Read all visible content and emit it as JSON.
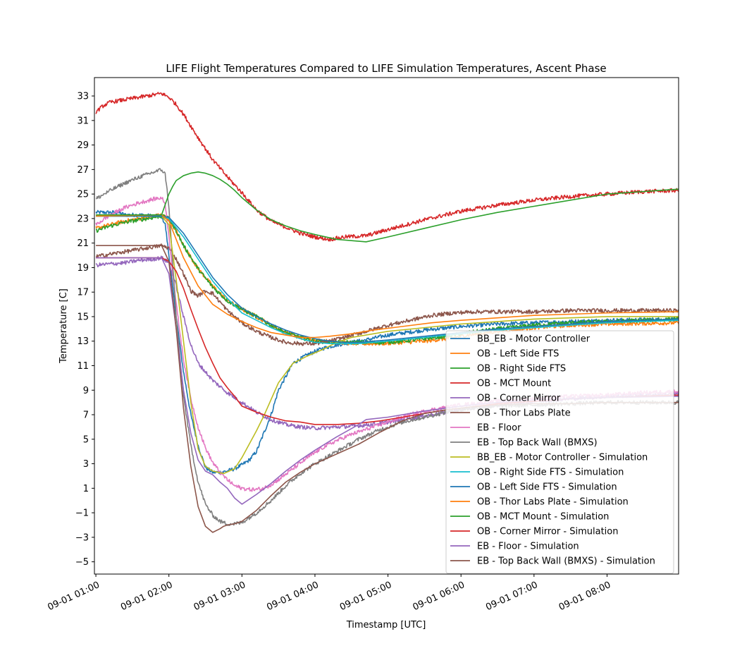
{
  "chart_data": {
    "type": "line",
    "title": "LIFE Flight Temperatures Compared to LIFE Simulation Temperatures, Ascent Phase",
    "xlabel": "Timestamp [UTC]",
    "ylabel": "Temperature [C]",
    "x_unit": "hours UTC on 09-01",
    "xlim": [
      0.98,
      8.98
    ],
    "ylim": [
      -6.0,
      34.5
    ],
    "x_ticks": [
      1,
      2,
      3,
      4,
      5,
      6,
      7,
      8
    ],
    "x_tick_labels": [
      "09-01 01:00",
      "09-01 02:00",
      "09-01 03:00",
      "09-01 04:00",
      "09-01 05:00",
      "09-01 06:00",
      "09-01 07:00",
      "09-01 08:00"
    ],
    "y_ticks": [
      -5,
      -3,
      -1,
      1,
      3,
      5,
      7,
      9,
      11,
      13,
      15,
      17,
      19,
      21,
      23,
      25,
      27,
      29,
      31,
      33
    ],
    "y_tick_labels": [
      "−5",
      "−3",
      "−1",
      "1",
      "3",
      "5",
      "7",
      "9",
      "11",
      "13",
      "15",
      "17",
      "19",
      "21",
      "23",
      "25",
      "27",
      "29",
      "31",
      "33"
    ],
    "grid": false,
    "legend_position": "lower-right",
    "series": [
      {
        "name": "BB_EB - Motor Controller",
        "color": "#1f77b4",
        "noisy": true,
        "x": [
          1.0,
          1.3,
          1.4,
          1.6,
          1.8,
          1.9,
          1.95,
          2.0,
          2.1,
          2.2,
          2.3,
          2.4,
          2.5,
          2.6,
          2.7,
          2.8,
          2.9,
          3.0,
          3.1,
          3.2,
          3.3,
          3.4,
          3.5,
          3.7,
          3.9,
          4.1,
          4.3,
          4.5,
          4.7,
          5.0,
          5.5,
          6.0,
          6.5,
          7.0,
          7.5,
          8.0,
          8.98
        ],
        "y": [
          23.5,
          23.5,
          23.3,
          23.3,
          23.2,
          23.2,
          22.5,
          20.0,
          15.0,
          10.5,
          7.0,
          4.5,
          2.7,
          2.3,
          2.3,
          2.4,
          2.6,
          2.9,
          3.3,
          4.0,
          5.5,
          7.0,
          9.0,
          11.2,
          11.9,
          12.4,
          12.7,
          12.9,
          13.1,
          13.5,
          13.9,
          14.2,
          14.4,
          14.5,
          14.6,
          14.7,
          14.8
        ]
      },
      {
        "name": "OB - Left Side FTS",
        "color": "#ff7f0e",
        "noisy": true,
        "x": [
          1.0,
          1.2,
          1.4,
          1.6,
          1.8,
          1.9,
          2.0,
          2.1,
          2.2,
          2.4,
          2.6,
          2.8,
          3.0,
          3.2,
          3.4,
          3.6,
          3.8,
          4.0,
          4.3,
          4.6,
          4.9,
          5.2,
          5.5,
          5.8,
          6.1,
          6.5,
          7.0,
          7.5,
          8.0,
          8.98
        ],
        "y": [
          22.2,
          22.5,
          22.8,
          23.0,
          23.2,
          23.3,
          23.0,
          22.0,
          20.8,
          18.9,
          17.5,
          16.3,
          15.6,
          15.0,
          14.3,
          13.7,
          13.3,
          13.1,
          12.9,
          12.8,
          12.8,
          12.9,
          13.0,
          13.2,
          13.5,
          13.8,
          14.1,
          14.3,
          14.4,
          14.5
        ]
      },
      {
        "name": "OB - Right Side FTS",
        "color": "#2ca02c",
        "noisy": true,
        "x": [
          1.0,
          1.2,
          1.4,
          1.6,
          1.8,
          1.9,
          2.0,
          2.1,
          2.2,
          2.4,
          2.6,
          2.8,
          3.0,
          3.2,
          3.4,
          3.6,
          3.8,
          4.0,
          4.3,
          4.6,
          4.9,
          5.2,
          5.5,
          5.8,
          6.1,
          6.5,
          7.0,
          7.5,
          8.0,
          8.98
        ],
        "y": [
          22.0,
          22.4,
          22.7,
          22.9,
          23.1,
          23.2,
          23.0,
          22.0,
          20.8,
          18.9,
          17.4,
          16.3,
          15.6,
          15.0,
          14.3,
          13.7,
          13.3,
          13.0,
          12.9,
          12.9,
          12.9,
          13.0,
          13.2,
          13.4,
          13.7,
          14.0,
          14.3,
          14.5,
          14.6,
          14.8
        ]
      },
      {
        "name": "OB - MCT Mount",
        "color": "#d62728",
        "noisy": true,
        "x": [
          1.0,
          1.1,
          1.2,
          1.4,
          1.6,
          1.8,
          1.9,
          2.0,
          2.1,
          2.2,
          2.4,
          2.6,
          2.8,
          3.0,
          3.2,
          3.4,
          3.6,
          3.8,
          4.0,
          4.2,
          4.4,
          4.7,
          5.0,
          5.5,
          6.0,
          6.5,
          7.0,
          7.5,
          8.0,
          8.5,
          8.98
        ],
        "y": [
          31.7,
          32.2,
          32.5,
          32.7,
          32.9,
          33.1,
          33.2,
          32.9,
          32.3,
          31.5,
          29.6,
          27.8,
          26.4,
          25.1,
          23.7,
          22.8,
          22.3,
          21.8,
          21.5,
          21.3,
          21.5,
          21.6,
          22.1,
          22.9,
          23.6,
          24.1,
          24.5,
          24.8,
          25.0,
          25.2,
          25.3
        ]
      },
      {
        "name": "OB - Corner Mirror",
        "color": "#9467bd",
        "noisy": true,
        "x": [
          1.0,
          1.2,
          1.4,
          1.6,
          1.8,
          1.9,
          2.0,
          2.1,
          2.2,
          2.3,
          2.4,
          2.6,
          2.8,
          3.0,
          3.2,
          3.4,
          3.6,
          3.8,
          4.0,
          4.3,
          4.6,
          4.9,
          5.2,
          5.5,
          5.8,
          6.1,
          6.5,
          7.0,
          7.5,
          8.0,
          8.98
        ],
        "y": [
          19.2,
          19.3,
          19.4,
          19.6,
          19.7,
          19.8,
          19.4,
          17.5,
          15.0,
          12.7,
          11.2,
          9.8,
          8.8,
          8.0,
          7.2,
          6.6,
          6.2,
          6.0,
          5.9,
          6.0,
          6.1,
          6.3,
          6.6,
          6.9,
          7.2,
          7.5,
          7.8,
          8.1,
          8.3,
          8.5,
          8.7
        ]
      },
      {
        "name": "OB - Thor Labs Plate",
        "color": "#8c564b",
        "noisy": true,
        "x": [
          1.0,
          1.2,
          1.4,
          1.6,
          1.8,
          1.9,
          2.0,
          2.1,
          2.2,
          2.3,
          2.4,
          2.5,
          2.6,
          2.7,
          2.8,
          3.0,
          3.2,
          3.4,
          3.6,
          3.8,
          4.0,
          4.2,
          4.4,
          4.7,
          5.0,
          5.3,
          5.6,
          5.9,
          6.2,
          6.6,
          7.0,
          7.5,
          8.0,
          8.98
        ],
        "y": [
          19.9,
          20.1,
          20.3,
          20.5,
          20.7,
          20.8,
          20.6,
          19.7,
          18.5,
          17.1,
          16.7,
          17.1,
          16.9,
          16.2,
          15.5,
          14.5,
          13.8,
          13.3,
          12.9,
          12.8,
          12.8,
          13.0,
          13.3,
          13.8,
          14.3,
          14.7,
          15.1,
          15.3,
          15.4,
          15.4,
          15.4,
          15.5,
          15.5,
          15.5
        ]
      },
      {
        "name": "EB - Floor",
        "color": "#e377c2",
        "noisy": true,
        "x": [
          1.0,
          1.2,
          1.4,
          1.6,
          1.8,
          1.9,
          1.95,
          2.0,
          2.1,
          2.2,
          2.3,
          2.4,
          2.5,
          2.6,
          2.7,
          2.8,
          2.9,
          3.0,
          3.1,
          3.2,
          3.3,
          3.4,
          3.5,
          3.7,
          3.9,
          4.1,
          4.3,
          4.5,
          4.7,
          5.0,
          5.3,
          5.6,
          6.0,
          6.5,
          7.0,
          7.5,
          8.0,
          8.5,
          8.98
        ],
        "y": [
          22.5,
          23.3,
          23.9,
          24.3,
          24.6,
          24.7,
          24.2,
          21.5,
          16.0,
          11.5,
          8.3,
          6.0,
          4.3,
          3.1,
          2.3,
          1.7,
          1.2,
          1.0,
          0.9,
          0.9,
          1.0,
          1.3,
          1.7,
          2.6,
          3.5,
          4.3,
          4.9,
          5.4,
          5.8,
          6.4,
          7.0,
          7.4,
          7.8,
          8.1,
          8.3,
          8.5,
          8.6,
          8.8,
          8.9
        ]
      },
      {
        "name": "EB - Top Back Wall (BMXS)",
        "color": "#7f7f7f",
        "noisy": true,
        "x": [
          1.0,
          1.2,
          1.4,
          1.6,
          1.8,
          1.9,
          1.95,
          2.0,
          2.1,
          2.2,
          2.3,
          2.4,
          2.5,
          2.6,
          2.7,
          2.8,
          2.9,
          3.0,
          3.2,
          3.4,
          3.6,
          3.8,
          4.0,
          4.3,
          4.6,
          4.9,
          5.2,
          5.5,
          5.8,
          6.1,
          6.5,
          7.0,
          7.5,
          8.0,
          8.5,
          8.98
        ],
        "y": [
          24.6,
          25.3,
          25.9,
          26.4,
          26.8,
          27.0,
          26.6,
          24.0,
          15.0,
          8.5,
          4.5,
          1.5,
          -0.3,
          -1.2,
          -1.7,
          -1.9,
          -1.9,
          -1.8,
          -1.0,
          0.0,
          1.2,
          2.2,
          3.0,
          4.0,
          5.0,
          5.8,
          6.4,
          6.8,
          7.2,
          7.5,
          7.7,
          7.8,
          7.9,
          8.0,
          8.0,
          8.0
        ]
      },
      {
        "name": "BB_EB - Motor Controller - Simulation",
        "color": "#bcbd22",
        "noisy": false,
        "x": [
          1.0,
          1.9,
          2.0,
          2.1,
          2.2,
          2.3,
          2.4,
          2.5,
          2.6,
          2.75,
          2.9,
          3.0,
          3.1,
          3.2,
          3.3,
          3.5,
          3.7,
          3.9,
          4.1,
          4.3,
          4.5,
          4.7,
          5.0,
          5.5,
          6.0,
          6.5,
          7.0,
          7.5,
          8.0,
          8.98
        ],
        "y": [
          23.2,
          23.2,
          22.5,
          18.0,
          13.0,
          8.0,
          4.2,
          2.8,
          2.4,
          2.2,
          2.6,
          3.5,
          4.6,
          5.7,
          6.9,
          9.6,
          11.2,
          11.8,
          12.3,
          12.9,
          13.3,
          13.5,
          13.8,
          14.1,
          14.4,
          14.6,
          14.8,
          14.9,
          15.0,
          15.0
        ]
      },
      {
        "name": "OB - Right Side FTS - Simulation",
        "color": "#17becf",
        "noisy": false,
        "x": [
          1.0,
          1.9,
          2.0,
          2.2,
          2.4,
          2.6,
          2.8,
          3.0,
          3.2,
          3.4,
          3.6,
          3.8,
          4.0,
          4.2,
          4.4,
          4.6,
          4.8,
          5.0,
          5.5,
          6.0,
          6.5,
          7.0,
          7.5,
          8.0,
          8.98
        ],
        "y": [
          23.2,
          23.2,
          23.0,
          21.5,
          19.7,
          17.9,
          16.5,
          15.3,
          14.7,
          14.1,
          13.6,
          13.2,
          12.9,
          12.8,
          12.8,
          12.8,
          12.9,
          13.0,
          13.3,
          13.6,
          13.9,
          14.1,
          14.3,
          14.5,
          14.7
        ]
      },
      {
        "name": "OB - Left Side FTS - Simulation",
        "color": "#1f77b4",
        "noisy": false,
        "x": [
          1.0,
          1.9,
          2.0,
          2.2,
          2.4,
          2.6,
          2.8,
          3.0,
          3.2,
          3.4,
          3.6,
          3.8,
          4.0,
          4.2,
          4.4,
          4.6,
          4.8,
          5.0,
          5.5,
          6.0,
          6.5,
          7.0,
          7.5,
          8.0,
          8.98
        ],
        "y": [
          23.2,
          23.2,
          23.1,
          21.8,
          20.0,
          18.2,
          16.8,
          15.7,
          15.0,
          14.4,
          13.9,
          13.5,
          13.2,
          13.0,
          12.9,
          12.9,
          13.0,
          13.1,
          13.4,
          13.7,
          14.0,
          14.2,
          14.4,
          14.6,
          14.8
        ]
      },
      {
        "name": "OB - Thor Labs Plate - Simulation",
        "color": "#ff7f0e",
        "noisy": false,
        "x": [
          1.0,
          1.9,
          2.0,
          2.1,
          2.2,
          2.4,
          2.6,
          2.8,
          3.0,
          3.2,
          3.4,
          3.6,
          3.8,
          4.0,
          4.2,
          4.5,
          4.8,
          5.2,
          5.6,
          6.0,
          6.5,
          7.0,
          7.5,
          8.0,
          8.98
        ],
        "y": [
          23.2,
          23.3,
          22.8,
          21.3,
          19.8,
          17.5,
          16.0,
          15.2,
          14.6,
          14.1,
          13.7,
          13.5,
          13.3,
          13.3,
          13.4,
          13.6,
          13.9,
          14.2,
          14.5,
          14.7,
          14.9,
          15.1,
          15.2,
          15.3,
          15.4
        ]
      },
      {
        "name": "OB - MCT Mount - Simulation",
        "color": "#2ca02c",
        "noisy": false,
        "x": [
          1.0,
          1.9,
          2.0,
          2.05,
          2.1,
          2.2,
          2.3,
          2.4,
          2.5,
          2.6,
          2.7,
          2.8,
          2.9,
          3.0,
          3.2,
          3.4,
          3.6,
          3.8,
          4.0,
          4.3,
          4.5,
          4.7,
          5.0,
          5.5,
          6.0,
          6.5,
          7.0,
          7.5,
          8.0,
          8.98
        ],
        "y": [
          23.3,
          23.3,
          25.0,
          25.6,
          26.1,
          26.5,
          26.7,
          26.8,
          26.7,
          26.5,
          26.2,
          25.8,
          25.3,
          24.7,
          23.7,
          22.9,
          22.4,
          22.0,
          21.7,
          21.3,
          21.2,
          21.1,
          21.5,
          22.2,
          22.9,
          23.5,
          24.0,
          24.5,
          25.0,
          25.4
        ]
      },
      {
        "name": "OB - Corner Mirror - Simulation",
        "color": "#d62728",
        "noisy": false,
        "x": [
          1.0,
          1.9,
          2.0,
          2.1,
          2.2,
          2.3,
          2.4,
          2.5,
          2.6,
          2.7,
          2.8,
          2.9,
          3.0,
          3.2,
          3.4,
          3.6,
          3.8,
          4.0,
          4.3,
          4.6,
          4.9,
          5.2,
          5.5,
          5.8,
          6.1,
          6.5,
          7.0,
          7.5,
          8.0,
          8.98
        ],
        "y": [
          19.8,
          19.8,
          19.5,
          18.7,
          17.3,
          15.6,
          14.0,
          12.5,
          11.2,
          10.0,
          9.2,
          8.5,
          7.7,
          7.2,
          6.8,
          6.5,
          6.4,
          6.2,
          6.2,
          6.3,
          6.5,
          6.8,
          7.1,
          7.4,
          7.6,
          7.9,
          8.1,
          8.3,
          8.4,
          8.6
        ]
      },
      {
        "name": "EB - Floor - Simulation",
        "color": "#9467bd",
        "noisy": false,
        "x": [
          1.0,
          1.9,
          2.0,
          2.1,
          2.2,
          2.3,
          2.4,
          2.5,
          2.6,
          2.7,
          2.8,
          2.9,
          3.0,
          3.2,
          3.4,
          3.6,
          3.8,
          4.0,
          4.3,
          4.6,
          4.7,
          5.0,
          5.5,
          6.0,
          6.5,
          7.0,
          7.5,
          8.0,
          8.98
        ],
        "y": [
          19.8,
          19.8,
          18.5,
          14.0,
          9.0,
          5.5,
          3.3,
          2.4,
          2.1,
          1.5,
          1.0,
          0.2,
          -0.3,
          0.5,
          1.4,
          2.4,
          3.3,
          4.1,
          5.2,
          6.2,
          6.6,
          6.8,
          7.3,
          7.7,
          8.0,
          8.2,
          8.3,
          8.4,
          8.5
        ]
      },
      {
        "name": "EB - Top Back Wall (BMXS) - Simulation",
        "color": "#8c564b",
        "noisy": false,
        "x": [
          1.0,
          1.9,
          2.0,
          2.1,
          2.2,
          2.3,
          2.4,
          2.5,
          2.6,
          2.7,
          2.75,
          2.8,
          2.9,
          3.0,
          3.2,
          3.4,
          3.6,
          3.8,
          4.0,
          4.3,
          4.6,
          4.9,
          5.2,
          5.5,
          5.8,
          6.1,
          6.5,
          7.0,
          7.5,
          8.0,
          8.5,
          8.98
        ],
        "y": [
          20.8,
          20.8,
          19.5,
          14.0,
          7.5,
          2.8,
          -0.5,
          -2.1,
          -2.6,
          -2.3,
          -2.1,
          -2.0,
          -1.9,
          -1.7,
          -0.8,
          0.4,
          1.5,
          2.3,
          3.0,
          3.8,
          4.6,
          5.6,
          6.5,
          7.1,
          7.4,
          7.6,
          7.8,
          7.9,
          7.9,
          8.0,
          8.0,
          8.0
        ]
      }
    ]
  }
}
